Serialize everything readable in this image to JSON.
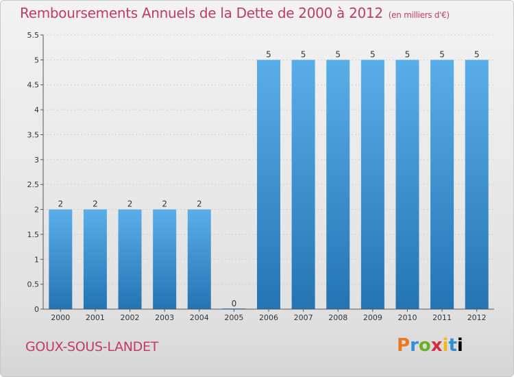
{
  "chart_data": {
    "type": "bar",
    "title": "Remboursements Annuels de la Dette de 2000 à 2012",
    "unit": "(en milliers d'€)",
    "categories": [
      "2000",
      "2001",
      "2002",
      "2003",
      "2004",
      "2005",
      "2006",
      "2007",
      "2008",
      "2009",
      "2010",
      "2011",
      "2012"
    ],
    "values": [
      2,
      2,
      2,
      2,
      2,
      0,
      5,
      5,
      5,
      5,
      5,
      5,
      5
    ],
    "value_labels": [
      "2",
      "2",
      "2",
      "2",
      "2",
      "0",
      "5",
      "5",
      "5",
      "5",
      "5",
      "5",
      "5"
    ],
    "yticks": [
      "0",
      "0.5",
      "1",
      "1.5",
      "2",
      "2.5",
      "3",
      "3.5",
      "4",
      "4.5",
      "5",
      "5.5"
    ],
    "ylim": [
      0,
      5.5
    ],
    "grid": true,
    "bar_color": "#3a8fd0"
  },
  "footer": {
    "commune": "GOUX-SOUS-LANDET",
    "logo_letters": [
      "P",
      "r",
      "o",
      "x",
      "i",
      "t",
      "i"
    ]
  }
}
